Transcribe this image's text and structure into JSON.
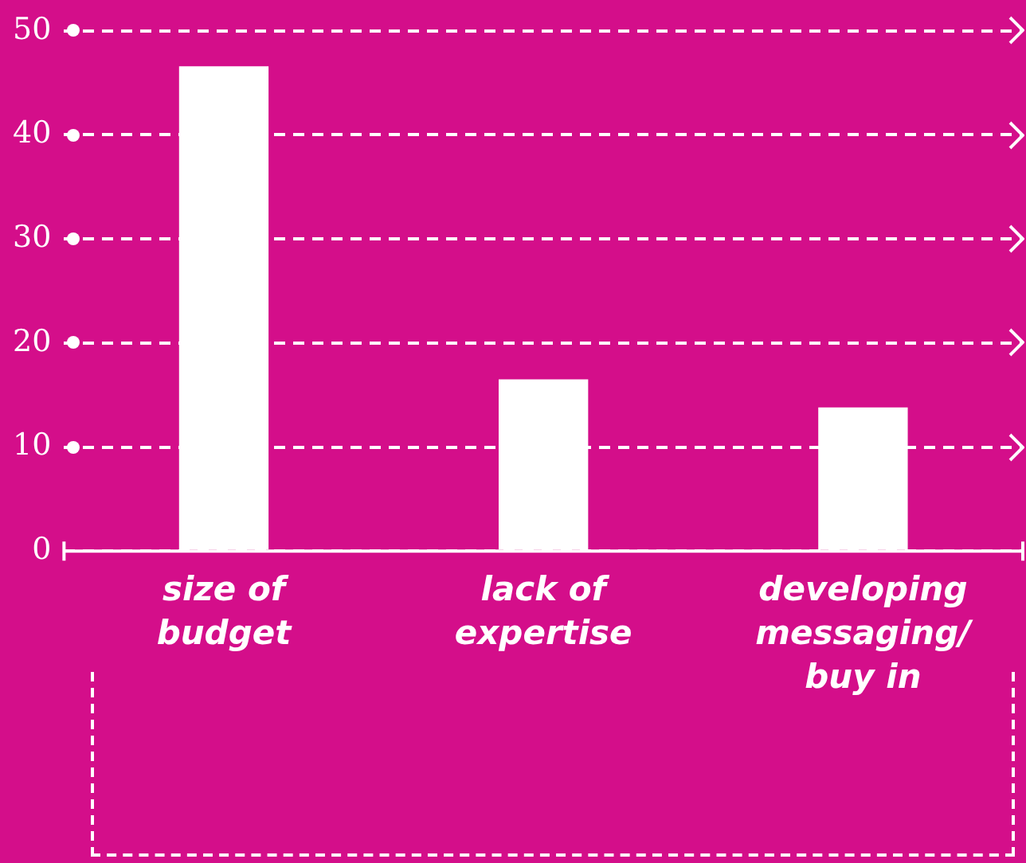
{
  "chart_data": {
    "type": "bar",
    "categories": [
      "size of budget",
      "lack of expertise",
      "developing messaging/ buy in"
    ],
    "values": [
      46.6,
      16.5,
      13.8
    ],
    "color": "#ffffff",
    "ylim": [
      0,
      50
    ],
    "yticks": [
      0,
      10,
      20,
      30,
      40,
      50
    ],
    "grid": "y",
    "legend": false
  }
}
